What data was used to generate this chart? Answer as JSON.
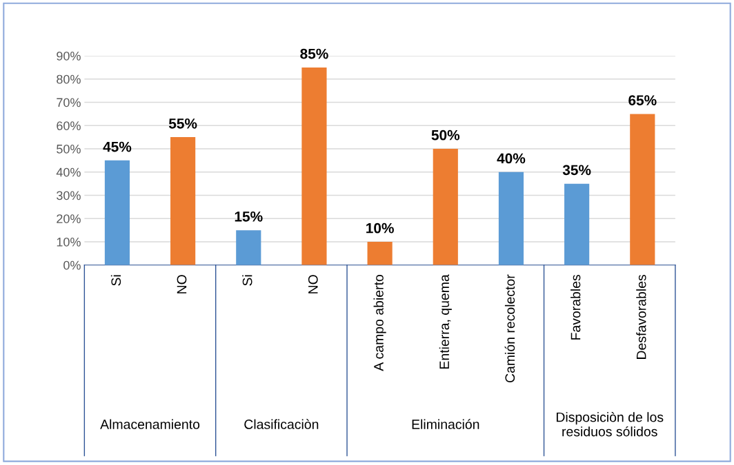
{
  "chart_data": {
    "type": "bar",
    "categories": [
      "Si",
      "NO",
      "Si",
      "NO",
      "A campo abierto",
      "Entierra, quema",
      "Camión recolector",
      "Favorables",
      "Desfavorables"
    ],
    "values": [
      45,
      55,
      15,
      85,
      10,
      50,
      40,
      35,
      65
    ],
    "colors": [
      "#5b9bd5",
      "#ed7d31",
      "#5b9bd5",
      "#ed7d31",
      "#ed7d31",
      "#ed7d31",
      "#5b9bd5",
      "#5b9bd5",
      "#ed7d31"
    ],
    "ylim": [
      0,
      90
    ],
    "yticks": [
      {
        "value": 0,
        "label": "0%"
      },
      {
        "value": 10,
        "label": "10%"
      },
      {
        "value": 20,
        "label": "20%"
      },
      {
        "value": 30,
        "label": "30%"
      },
      {
        "value": 40,
        "label": "40%"
      },
      {
        "value": 50,
        "label": "50%"
      },
      {
        "value": 60,
        "label": "60%"
      },
      {
        "value": 70,
        "label": "70%"
      },
      {
        "value": 80,
        "label": "80%"
      },
      {
        "value": 90,
        "label": "90%"
      }
    ],
    "value_labels": [
      "45%",
      "55%",
      "15%",
      "85%",
      "10%",
      "50%",
      "40%",
      "35%",
      "65%"
    ],
    "annotations": [
      "Almacenamiento",
      "Clasificaciòn",
      "Eliminación",
      "Disposiciòn de los residuos sólidos"
    ],
    "grid": "y"
  }
}
